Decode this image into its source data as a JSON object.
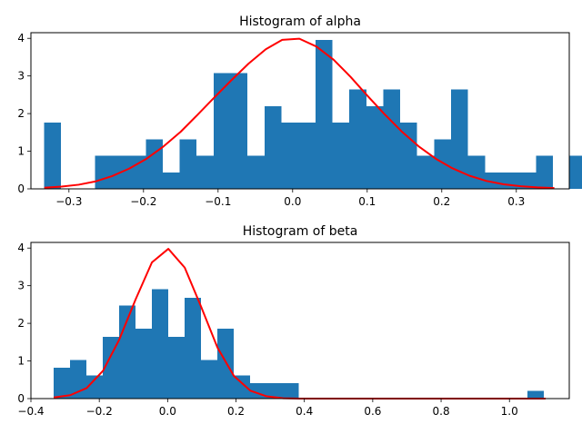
{
  "chart_data": [
    {
      "type": "bar",
      "title": "Histogram of alpha",
      "xlabel": "",
      "ylabel": "",
      "xlim": [
        -0.351,
        0.371
      ],
      "ylim": [
        0,
        4.15
      ],
      "grid": false,
      "bar_color": "#1f77b4",
      "curve_color": "#ff0000",
      "x_ticks": [
        -0.3,
        -0.2,
        -0.1,
        0.0,
        0.1,
        0.2,
        0.3
      ],
      "x_tick_labels": [
        "−0.3",
        "−0.2",
        "−0.1",
        "0.0",
        "0.1",
        "0.2",
        "0.3"
      ],
      "y_ticks": [
        0,
        1,
        2,
        3,
        4
      ],
      "y_tick_labels": [
        "0",
        "1",
        "2",
        "3",
        "4"
      ],
      "bins": {
        "start": -0.3335,
        "width": 0.02275,
        "values": [
          1.76,
          0,
          0,
          0.88,
          0.88,
          0.88,
          1.32,
          0.44,
          1.32,
          0.88,
          3.08,
          3.08,
          0.88,
          2.2,
          1.76,
          1.76,
          3.96,
          1.76,
          2.64,
          2.2,
          2.64,
          1.76,
          0.88,
          1.32,
          2.64,
          0.88,
          0.44,
          0.44,
          0.44,
          0.88,
          0,
          0.88
        ]
      },
      "curve": {
        "x": [
          -0.333,
          -0.31,
          -0.287,
          -0.264,
          -0.242,
          -0.219,
          -0.196,
          -0.173,
          -0.15,
          -0.128,
          -0.105,
          -0.082,
          -0.059,
          -0.036,
          -0.014,
          0.009,
          0.032,
          0.055,
          0.078,
          0.1,
          0.123,
          0.146,
          0.169,
          0.192,
          0.214,
          0.237,
          0.26,
          0.283,
          0.306,
          0.328,
          0.351
        ],
        "y": [
          0.03,
          0.06,
          0.11,
          0.2,
          0.34,
          0.54,
          0.8,
          1.13,
          1.52,
          1.96,
          2.43,
          2.89,
          3.33,
          3.71,
          3.96,
          3.99,
          3.78,
          3.43,
          2.97,
          2.48,
          1.99,
          1.53,
          1.13,
          0.8,
          0.55,
          0.35,
          0.21,
          0.12,
          0.07,
          0.04,
          0.02
        ]
      }
    },
    {
      "type": "bar",
      "title": "Histogram of beta",
      "xlabel": "",
      "ylabel": "",
      "xlim": [
        -0.4,
        1.175
      ],
      "ylim": [
        0,
        4.15
      ],
      "grid": false,
      "bar_color": "#1f77b4",
      "curve_color": "#ff0000",
      "x_ticks": [
        -0.4,
        -0.2,
        0.0,
        0.2,
        0.4,
        0.6,
        0.8,
        1.0
      ],
      "x_tick_labels": [
        "−0.4",
        "−0.2",
        "0.0",
        "0.2",
        "0.4",
        "0.6",
        "0.8",
        "1.0"
      ],
      "y_ticks": [
        0,
        1,
        2,
        3,
        4
      ],
      "y_tick_labels": [
        "0",
        "1",
        "2",
        "3",
        "4"
      ],
      "bins": {
        "start": -0.333,
        "width": 0.0478,
        "values": [
          0.82,
          1.02,
          0.61,
          1.64,
          2.47,
          1.86,
          2.91,
          1.64,
          2.68,
          1.02,
          1.86,
          0.61,
          0.41,
          0.41,
          0.41,
          0,
          0,
          0,
          0,
          0,
          0,
          0,
          0,
          0,
          0,
          0,
          0,
          0,
          0,
          0.2
        ]
      },
      "curve": {
        "x": [
          -0.333,
          -0.285,
          -0.237,
          -0.189,
          -0.142,
          -0.094,
          -0.046,
          0.002,
          0.05,
          0.098,
          0.146,
          0.194,
          0.242,
          0.29,
          0.338,
          0.386,
          0.434,
          0.482,
          0.53,
          0.578,
          0.626,
          0.674,
          0.722,
          0.77,
          0.818,
          0.866,
          0.914,
          0.962,
          1.01,
          1.058,
          1.106
        ],
        "y": [
          0.03,
          0.09,
          0.28,
          0.74,
          1.56,
          2.63,
          3.62,
          3.98,
          3.48,
          2.44,
          1.35,
          0.6,
          0.21,
          0.06,
          0.01,
          0,
          0,
          0,
          0,
          0,
          0,
          0,
          0,
          0,
          0,
          0,
          0,
          0,
          0,
          0,
          0
        ]
      }
    }
  ]
}
